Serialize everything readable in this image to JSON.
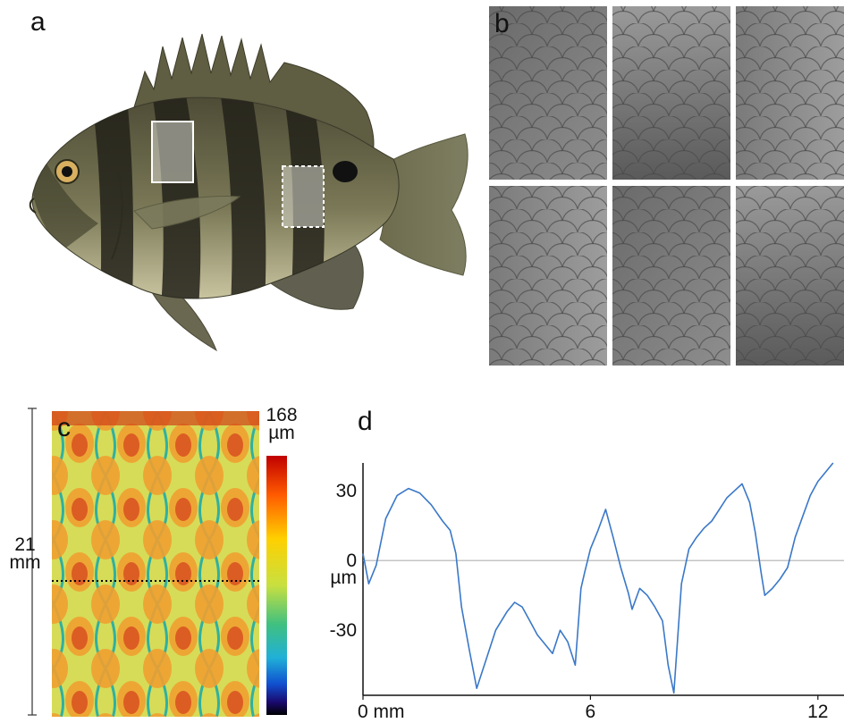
{
  "panels": {
    "a": {
      "letter": "a"
    },
    "b": {
      "letter": "b"
    },
    "c": {
      "letter": "c",
      "scale_value": "21",
      "scale_unit": "mm",
      "colorbar_max_value": "168",
      "colorbar_unit": "µm",
      "colorbar_colors": [
        "#c00000",
        "#ff6000",
        "#ffd000",
        "#d4e640",
        "#40c080",
        "#20b0d0",
        "#1060d0",
        "#1a0a70",
        "#000000"
      ]
    },
    "d": {
      "letter": "d"
    }
  },
  "colors": {
    "profile_line": "#3a78c8",
    "zero_line": "#b0b0b0",
    "fish_body": "#6b6a48",
    "fish_band": "#2a2820",
    "height_map_base": "#d8dc50"
  },
  "chart_data": {
    "type": "line",
    "title": "",
    "xlabel": "",
    "ylabel": "",
    "x_unit": "mm",
    "y_unit": "µm",
    "x_ticks": [
      0,
      6,
      12
    ],
    "x_tick_labels": [
      "0 mm",
      "6",
      "12"
    ],
    "y_ticks": [
      30,
      0,
      -30
    ],
    "y_tick_labels": [
      "30",
      "0",
      "-30"
    ],
    "y_zero_unit_label": "µm",
    "xlim": [
      0,
      12.5
    ],
    "ylim": [
      -58,
      42
    ],
    "series": [
      {
        "x": [
          0.0,
          0.15,
          0.35,
          0.6,
          0.9,
          1.2,
          1.5,
          1.8,
          2.1,
          2.3,
          2.45,
          2.6,
          2.8,
          3.0,
          3.2,
          3.5,
          3.8,
          4.0,
          4.2,
          4.4,
          4.6,
          4.8,
          5.0,
          5.2,
          5.4,
          5.6,
          5.75,
          5.85,
          6.0,
          6.2,
          6.4,
          6.6,
          6.8,
          7.0,
          7.1,
          7.3,
          7.5,
          7.7,
          7.9,
          8.05,
          8.2,
          8.4,
          8.6,
          8.8,
          9.0,
          9.2,
          9.4,
          9.6,
          9.8,
          10.0,
          10.2,
          10.35,
          10.5,
          10.6,
          10.8,
          11.0,
          11.2,
          11.4,
          11.6,
          11.8,
          12.0,
          12.2,
          12.4
        ],
        "y": [
          3,
          -10,
          -2,
          18,
          28,
          31,
          29,
          24,
          17,
          13,
          3,
          -20,
          -38,
          -55,
          -45,
          -30,
          -22,
          -18,
          -20,
          -26,
          -32,
          -36,
          -40,
          -30,
          -35,
          -45,
          -12,
          -5,
          5,
          13,
          22,
          10,
          -3,
          -14,
          -21,
          -12,
          -15,
          -20,
          -26,
          -45,
          -57,
          -10,
          5,
          10,
          14,
          17,
          22,
          27,
          30,
          33,
          25,
          12,
          -5,
          -15,
          -12,
          -8,
          -3,
          10,
          19,
          28,
          34,
          38,
          42
        ]
      }
    ]
  }
}
